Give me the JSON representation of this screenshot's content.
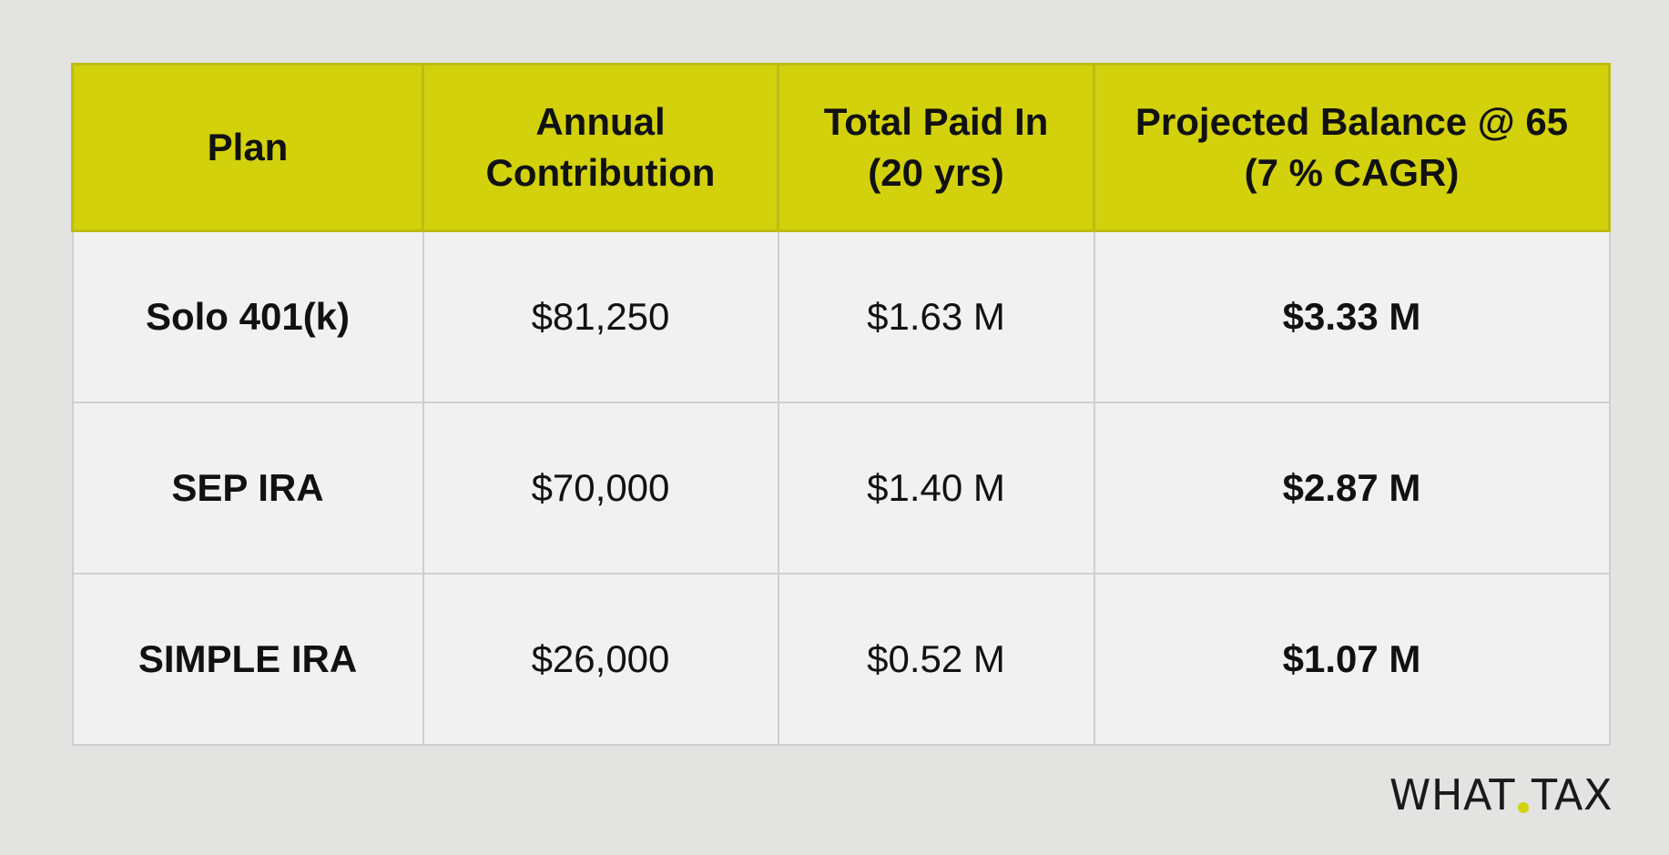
{
  "table": {
    "headers": [
      [
        "Plan"
      ],
      [
        "Annual",
        "Contribution"
      ],
      [
        "Total Paid In",
        "(20 yrs)"
      ],
      [
        "Projected Balance @ 65",
        "(7 % CAGR)"
      ]
    ],
    "rows": [
      {
        "plan": "Solo 401(k)",
        "annual": "$81,250",
        "paid": "$1.63 M",
        "balance": "$3.33 M"
      },
      {
        "plan": "SEP IRA",
        "annual": "$70,000",
        "paid": "$1.40 M",
        "balance": "$2.87 M"
      },
      {
        "plan": "SIMPLE IRA",
        "annual": "$26,000",
        "paid": "$0.52 M",
        "balance": "$1.07 M"
      }
    ]
  },
  "logo": {
    "left": "WHAT",
    "right": "TAX",
    "dot_color": "#d2d10c"
  },
  "colors": {
    "header_bg": "#d2d10c",
    "body_bg": "#f1f1f1",
    "page_bg": "#e3e3e1"
  }
}
